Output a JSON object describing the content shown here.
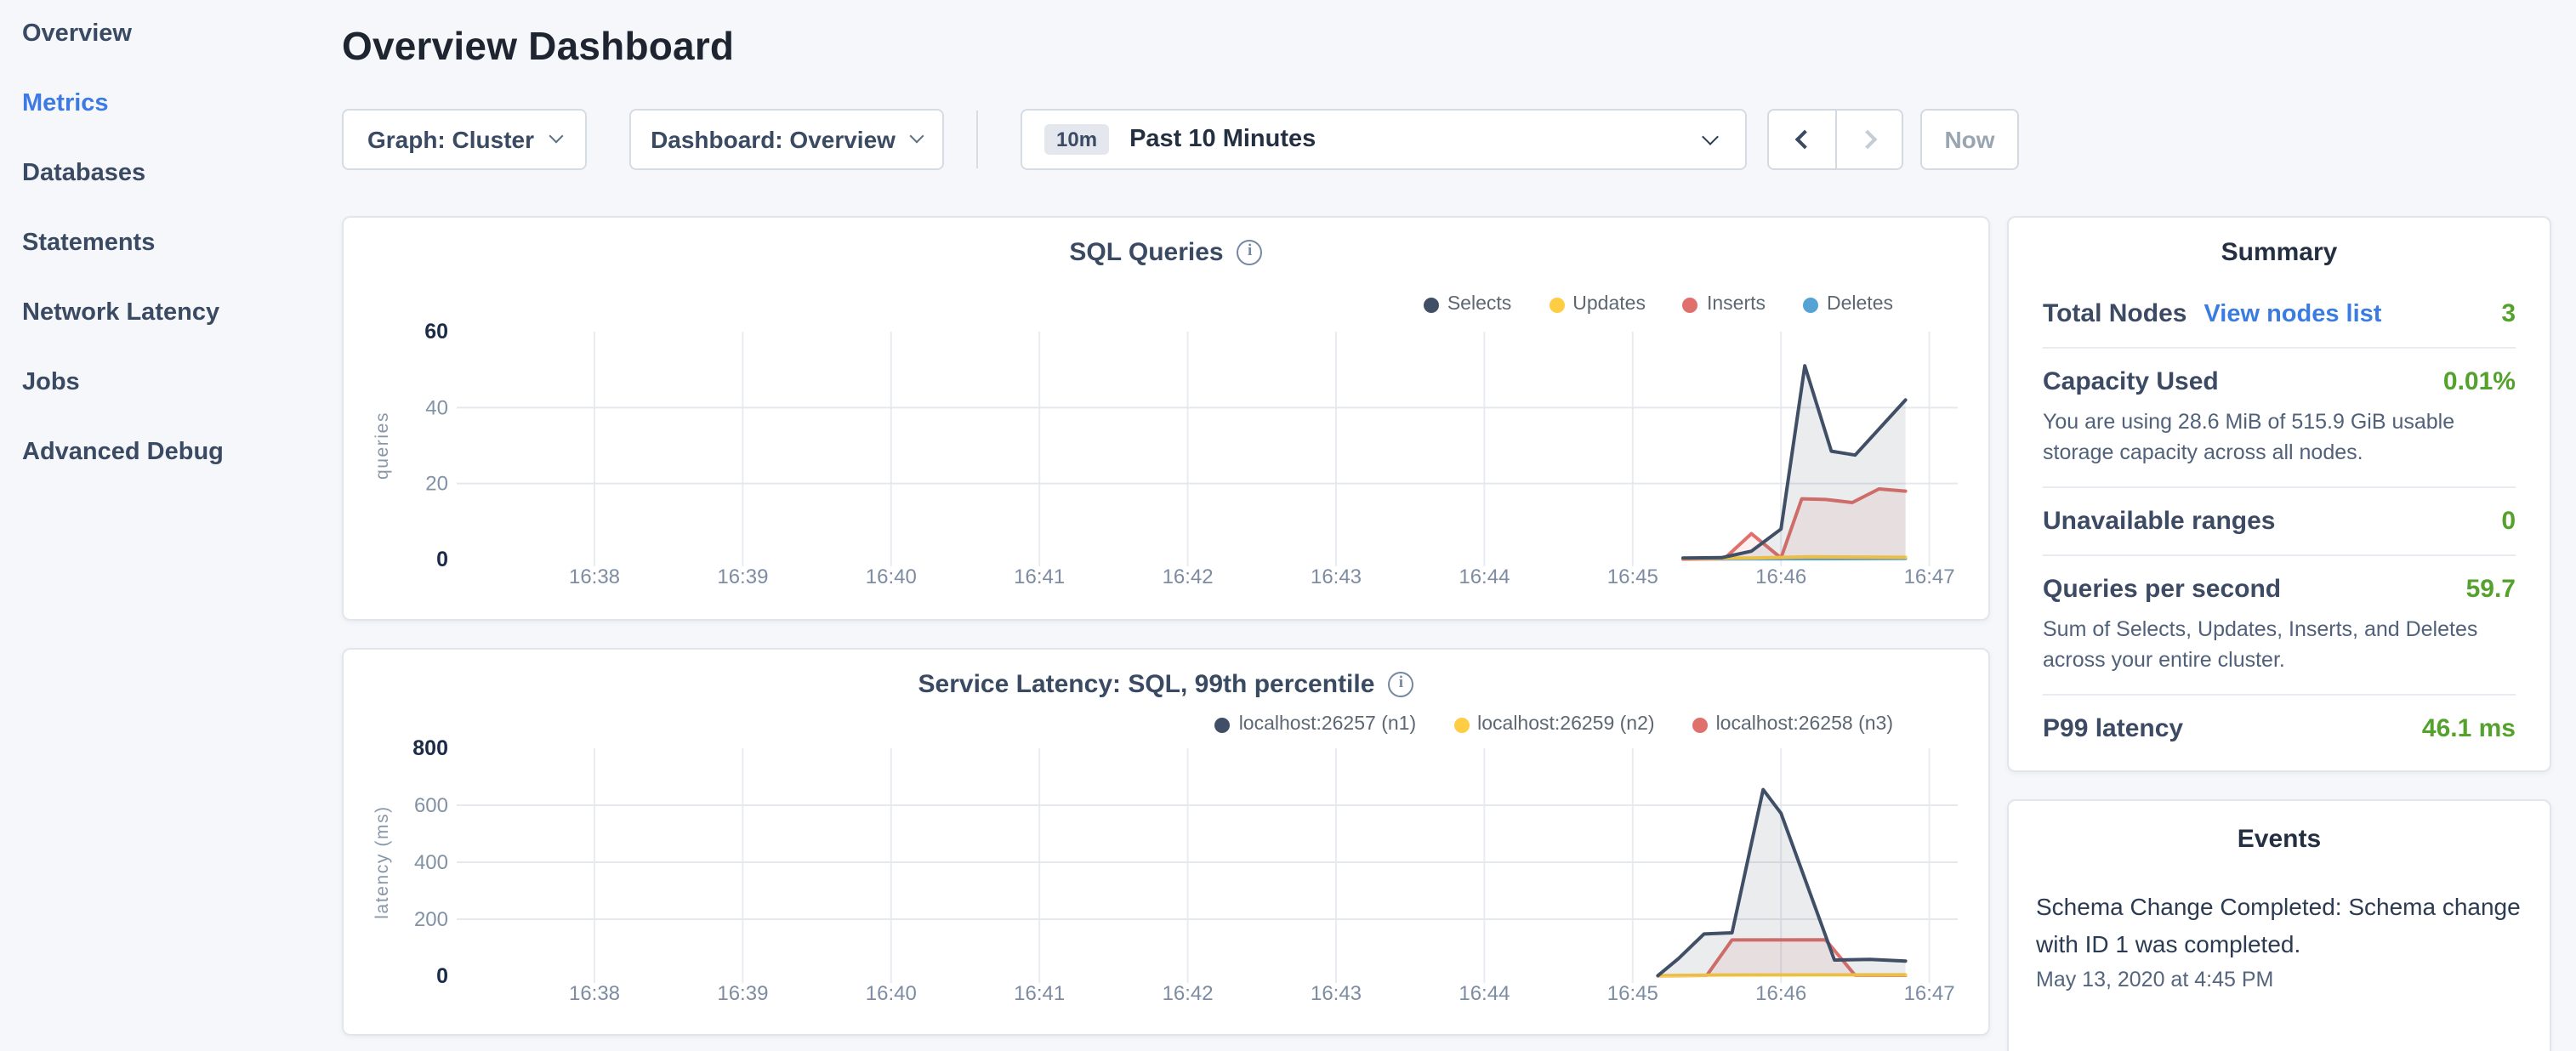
{
  "sidebar": {
    "items": [
      {
        "label": "Overview",
        "active": false
      },
      {
        "label": "Metrics",
        "active": true
      },
      {
        "label": "Databases",
        "active": false
      },
      {
        "label": "Statements",
        "active": false
      },
      {
        "label": "Network Latency",
        "active": false
      },
      {
        "label": "Jobs",
        "active": false
      },
      {
        "label": "Advanced Debug",
        "active": false
      }
    ]
  },
  "header": {
    "title": "Overview Dashboard"
  },
  "controls": {
    "graph_dropdown": {
      "label": "Graph: Cluster"
    },
    "dashboard_dropdown": {
      "label": "Dashboard: Overview"
    },
    "time_picker": {
      "badge": "10m",
      "label": "Past 10 Minutes"
    },
    "now_button": "Now"
  },
  "colors": {
    "accent_blue": "#3d7be4",
    "link_blue": "#3b7ce0",
    "green": "#55a12e",
    "series_navy": "#404f66",
    "series_yellow": "#ffcd44",
    "series_red": "#e0706b",
    "series_light_blue": "#54a3d4"
  },
  "chart_data": [
    {
      "type": "area",
      "title": "SQL Queries",
      "ylabel": "queries",
      "xlabel": "",
      "ylim": [
        0,
        60
      ],
      "xlim": [
        0.07,
        10.19
      ],
      "grid": true,
      "legend_position": "top-right",
      "y_ticks": [
        {
          "v": 0,
          "label": "0",
          "bold": true
        },
        {
          "v": 20,
          "label": "20",
          "grid": true
        },
        {
          "v": 40,
          "label": "40",
          "grid": true
        },
        {
          "v": 60,
          "label": "60",
          "bold": true
        }
      ],
      "x_ticks": [
        {
          "pos": 1,
          "label": "16:38"
        },
        {
          "pos": 2,
          "label": "16:39"
        },
        {
          "pos": 3,
          "label": "16:40"
        },
        {
          "pos": 4,
          "label": "16:41"
        },
        {
          "pos": 5,
          "label": "16:42"
        },
        {
          "pos": 6,
          "label": "16:43"
        },
        {
          "pos": 7,
          "label": "16:44"
        },
        {
          "pos": 8,
          "label": "16:45"
        },
        {
          "pos": 9,
          "label": "16:46"
        },
        {
          "pos": 10,
          "label": "16:47"
        }
      ],
      "series": [
        {
          "name": "Selects",
          "color": "#404f66",
          "fill_opacity": 0.11,
          "points": [
            [
              8.34,
              0.4
            ],
            [
              8.6,
              0.5
            ],
            [
              8.8,
              2.2
            ],
            [
              9.0,
              8
            ],
            [
              9.16,
              51
            ],
            [
              9.34,
              28.5
            ],
            [
              9.5,
              27.5
            ],
            [
              9.84,
              42
            ]
          ]
        },
        {
          "name": "Updates",
          "color": "#ffcd44",
          "fill_opacity": 0.15,
          "points": [
            [
              8.34,
              0.3
            ],
            [
              8.8,
              0.4
            ],
            [
              9.2,
              0.7
            ],
            [
              9.84,
              0.6
            ]
          ]
        },
        {
          "name": "Inserts",
          "color": "#e0706b",
          "fill_opacity": 0.1,
          "points": [
            [
              8.34,
              0.1
            ],
            [
              8.62,
              0.3
            ],
            [
              8.8,
              6.8
            ],
            [
              9.0,
              0.4
            ],
            [
              9.14,
              16
            ],
            [
              9.3,
              15.8
            ],
            [
              9.48,
              15
            ],
            [
              9.66,
              18.6
            ],
            [
              9.84,
              18
            ]
          ]
        },
        {
          "name": "Deletes",
          "color": "#54a3d4",
          "fill_opacity": 0.1,
          "points": [
            [
              8.34,
              0.15
            ],
            [
              9.84,
              0.25
            ]
          ]
        }
      ]
    },
    {
      "type": "area",
      "title": "Service Latency: SQL, 99th percentile",
      "ylabel": "latency (ms)",
      "xlabel": "",
      "ylim": [
        0,
        800
      ],
      "xlim": [
        0.07,
        10.19
      ],
      "grid": true,
      "legend_position": "top-right",
      "y_ticks": [
        {
          "v": 0,
          "label": "0",
          "bold": true
        },
        {
          "v": 200,
          "label": "200",
          "grid": true
        },
        {
          "v": 400,
          "label": "400",
          "grid": true
        },
        {
          "v": 600,
          "label": "600",
          "grid": true
        },
        {
          "v": 800,
          "label": "800",
          "bold": true
        }
      ],
      "x_ticks": [
        {
          "pos": 1,
          "label": "16:38"
        },
        {
          "pos": 2,
          "label": "16:39"
        },
        {
          "pos": 3,
          "label": "16:40"
        },
        {
          "pos": 4,
          "label": "16:41"
        },
        {
          "pos": 5,
          "label": "16:42"
        },
        {
          "pos": 6,
          "label": "16:43"
        },
        {
          "pos": 7,
          "label": "16:44"
        },
        {
          "pos": 8,
          "label": "16:45"
        },
        {
          "pos": 9,
          "label": "16:46"
        },
        {
          "pos": 10,
          "label": "16:47"
        }
      ],
      "series": [
        {
          "name": "localhost:26257 (n1)",
          "color": "#404f66",
          "fill_opacity": 0.11,
          "points": [
            [
              8.17,
              2
            ],
            [
              8.31,
              62
            ],
            [
              8.48,
              148
            ],
            [
              8.67,
              152
            ],
            [
              8.88,
              655
            ],
            [
              9.0,
              572
            ],
            [
              9.36,
              57
            ],
            [
              9.6,
              59
            ],
            [
              9.84,
              53
            ]
          ]
        },
        {
          "name": "localhost:26259 (n2)",
          "color": "#ffcd44",
          "fill_opacity": 0.15,
          "points": [
            [
              8.17,
              2
            ],
            [
              8.6,
              4
            ],
            [
              9.84,
              5
            ]
          ]
        },
        {
          "name": "localhost:26258 (n3)",
          "color": "#e0706b",
          "fill_opacity": 0.1,
          "points": [
            [
              8.17,
              1
            ],
            [
              8.5,
              3
            ],
            [
              8.67,
              127
            ],
            [
              9.3,
              128
            ],
            [
              9.5,
              3
            ],
            [
              9.84,
              3
            ]
          ]
        }
      ]
    }
  ],
  "summary": {
    "title": "Summary",
    "rows": [
      {
        "label": "Total Nodes",
        "link": "View nodes list",
        "value": "3"
      },
      {
        "label": "Capacity Used",
        "value": "0.01%",
        "description": "You are using 28.6 MiB of 515.9 GiB usable storage capacity across all nodes."
      },
      {
        "label": "Unavailable ranges",
        "value": "0"
      },
      {
        "label": "Queries per second",
        "value": "59.7",
        "description": "Sum of Selects, Updates, Inserts, and Deletes across your entire cluster."
      },
      {
        "label": "P99 latency",
        "value": "46.1 ms"
      }
    ]
  },
  "events": {
    "title": "Events",
    "items": [
      {
        "text": "Schema Change Completed: Schema change with ID 1 was completed.",
        "timestamp": "May 13, 2020 at 4:45 PM"
      }
    ]
  }
}
